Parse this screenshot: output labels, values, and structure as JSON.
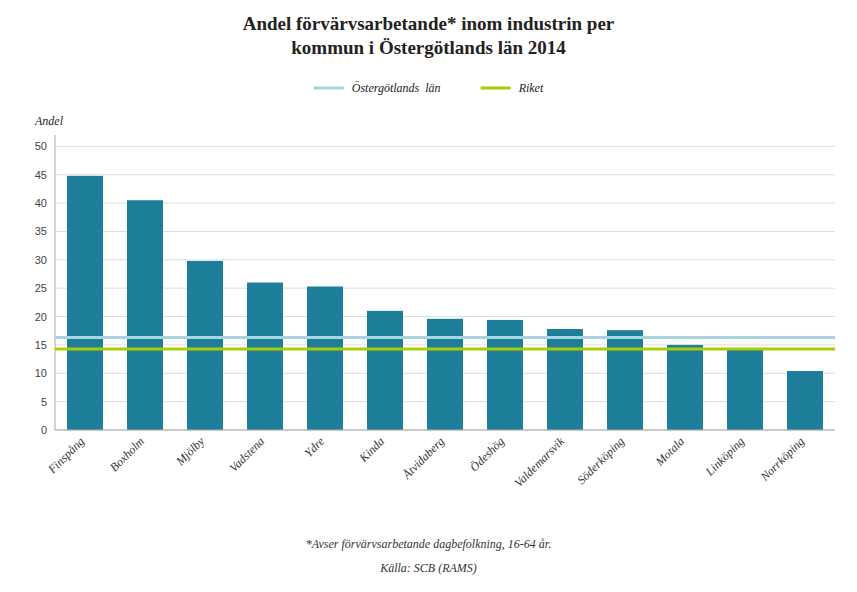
{
  "chart_data": {
    "type": "bar",
    "title": "Andel förvärvsarbetande* inom industrin per\nkommun i Östergötlands län 2014",
    "ylabel": "Andel",
    "categories": [
      "Finspång",
      "Boxholm",
      "Mjölby",
      "Vadstena",
      "Ydre",
      "Kinda",
      "Åtvidaberg",
      "Ödeshög",
      "Valdemarsvik",
      "Söderköping",
      "Motala",
      "Linköping",
      "Norrköping"
    ],
    "values": [
      44.8,
      40.5,
      29.8,
      26.0,
      25.3,
      21.0,
      19.6,
      19.4,
      17.8,
      17.6,
      15.0,
      14.3,
      10.4
    ],
    "color": "#1d7f9a",
    "reference_lines": [
      {
        "name": "Östergötlands  län",
        "color": "#a8d4e0",
        "value": 16.3
      },
      {
        "name": "Riket",
        "color": "#aacc00",
        "value": 14.3
      }
    ],
    "ylim": [
      0,
      52
    ],
    "yticks": [
      0,
      5,
      10,
      15,
      20,
      25,
      30,
      35,
      40,
      45,
      50
    ],
    "grid": true,
    "legend": "top",
    "footnotes": [
      "*Avser förvärvsarbetande dagbefolkning, 16-64 år.",
      "Källa: SCB (RAMS)"
    ]
  }
}
